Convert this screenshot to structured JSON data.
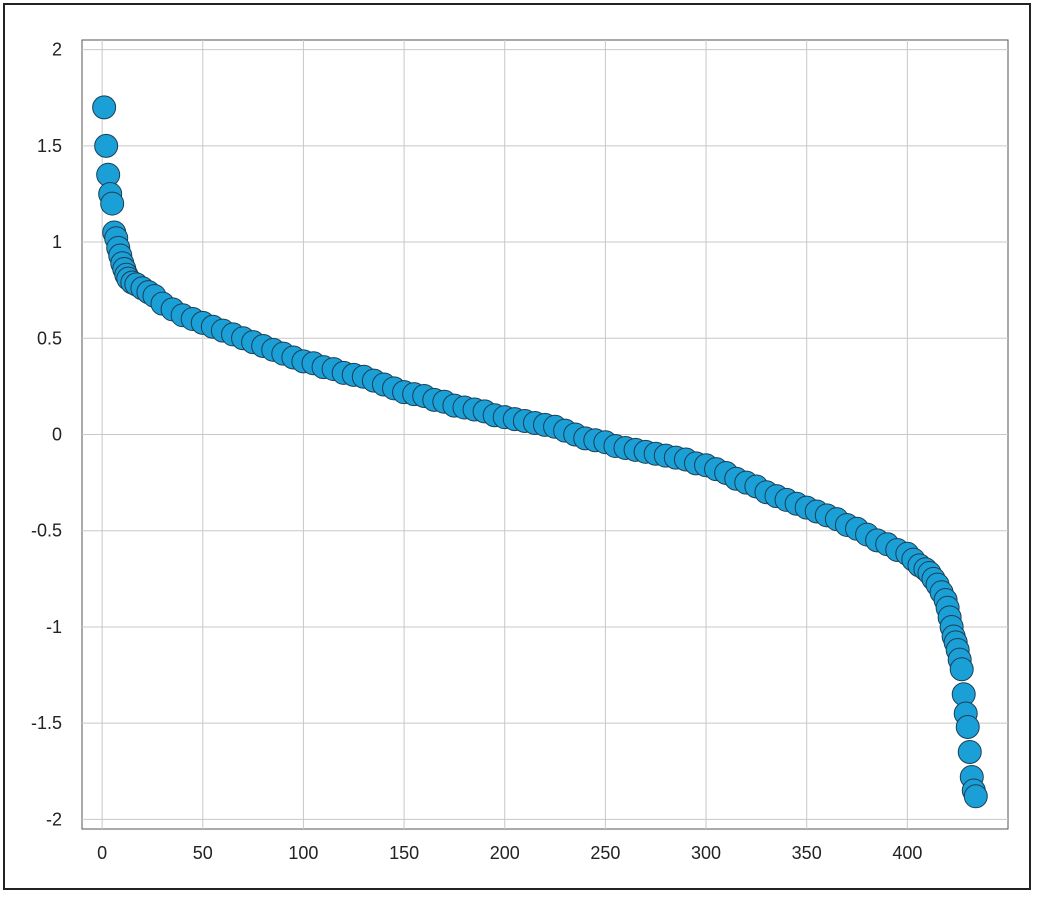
{
  "chart_data": {
    "type": "scatter",
    "title": "",
    "xlabel": "",
    "ylabel": "",
    "xlim": [
      -10,
      450
    ],
    "ylim": [
      -2.05,
      2.05
    ],
    "xticks": [
      0,
      50,
      100,
      150,
      200,
      250,
      300,
      350,
      400
    ],
    "yticks": [
      2,
      1.5,
      1,
      0.5,
      0,
      -0.5,
      -1,
      -1.5,
      -2
    ],
    "xtick_labels": [
      "0",
      "50",
      "100",
      "150",
      "200",
      "250",
      "300",
      "350",
      "400"
    ],
    "ytick_labels": [
      "2",
      "1.5",
      "1",
      "0.5",
      "0",
      "-0.5",
      "-1",
      "-1.5",
      "-2"
    ],
    "grid": true,
    "legend": "none",
    "marker_color": "#1a9fd6",
    "marker_edge_color": "#1b3f55",
    "series": [
      {
        "points": [
          [
            1,
            1.7
          ],
          [
            2,
            1.5
          ],
          [
            3,
            1.35
          ],
          [
            4,
            1.25
          ],
          [
            5,
            1.2
          ],
          [
            6,
            1.05
          ],
          [
            7,
            1.02
          ],
          [
            8,
            0.97
          ],
          [
            9,
            0.93
          ],
          [
            10,
            0.89
          ],
          [
            11,
            0.86
          ],
          [
            12,
            0.83
          ],
          [
            13,
            0.81
          ],
          [
            15,
            0.79
          ],
          [
            17,
            0.78
          ],
          [
            20,
            0.76
          ],
          [
            23,
            0.74
          ],
          [
            26,
            0.72
          ],
          [
            30,
            0.68
          ],
          [
            35,
            0.65
          ],
          [
            40,
            0.62
          ],
          [
            45,
            0.6
          ],
          [
            50,
            0.58
          ],
          [
            55,
            0.56
          ],
          [
            60,
            0.54
          ],
          [
            65,
            0.52
          ],
          [
            70,
            0.5
          ],
          [
            75,
            0.48
          ],
          [
            80,
            0.46
          ],
          [
            85,
            0.44
          ],
          [
            90,
            0.42
          ],
          [
            95,
            0.4
          ],
          [
            100,
            0.38
          ],
          [
            105,
            0.37
          ],
          [
            110,
            0.35
          ],
          [
            115,
            0.34
          ],
          [
            120,
            0.32
          ],
          [
            125,
            0.31
          ],
          [
            130,
            0.3
          ],
          [
            135,
            0.28
          ],
          [
            140,
            0.26
          ],
          [
            145,
            0.24
          ],
          [
            150,
            0.22
          ],
          [
            155,
            0.21
          ],
          [
            160,
            0.2
          ],
          [
            165,
            0.18
          ],
          [
            170,
            0.17
          ],
          [
            175,
            0.15
          ],
          [
            180,
            0.14
          ],
          [
            185,
            0.13
          ],
          [
            190,
            0.12
          ],
          [
            195,
            0.1
          ],
          [
            200,
            0.09
          ],
          [
            205,
            0.08
          ],
          [
            210,
            0.07
          ],
          [
            215,
            0.06
          ],
          [
            220,
            0.05
          ],
          [
            225,
            0.04
          ],
          [
            230,
            0.02
          ],
          [
            235,
            0.0
          ],
          [
            240,
            -0.02
          ],
          [
            245,
            -0.03
          ],
          [
            250,
            -0.04
          ],
          [
            255,
            -0.06
          ],
          [
            260,
            -0.07
          ],
          [
            265,
            -0.08
          ],
          [
            270,
            -0.09
          ],
          [
            275,
            -0.1
          ],
          [
            280,
            -0.11
          ],
          [
            285,
            -0.12
          ],
          [
            290,
            -0.13
          ],
          [
            295,
            -0.15
          ],
          [
            300,
            -0.16
          ],
          [
            305,
            -0.18
          ],
          [
            310,
            -0.2
          ],
          [
            315,
            -0.23
          ],
          [
            320,
            -0.25
          ],
          [
            325,
            -0.27
          ],
          [
            330,
            -0.3
          ],
          [
            335,
            -0.32
          ],
          [
            340,
            -0.34
          ],
          [
            345,
            -0.36
          ],
          [
            350,
            -0.38
          ],
          [
            355,
            -0.4
          ],
          [
            360,
            -0.42
          ],
          [
            365,
            -0.44
          ],
          [
            370,
            -0.47
          ],
          [
            375,
            -0.49
          ],
          [
            380,
            -0.52
          ],
          [
            385,
            -0.55
          ],
          [
            390,
            -0.57
          ],
          [
            395,
            -0.6
          ],
          [
            400,
            -0.62
          ],
          [
            403,
            -0.65
          ],
          [
            406,
            -0.68
          ],
          [
            409,
            -0.7
          ],
          [
            411,
            -0.72
          ],
          [
            413,
            -0.75
          ],
          [
            415,
            -0.78
          ],
          [
            417,
            -0.82
          ],
          [
            419,
            -0.86
          ],
          [
            420,
            -0.9
          ],
          [
            421,
            -0.95
          ],
          [
            422,
            -1.0
          ],
          [
            423,
            -1.05
          ],
          [
            424,
            -1.08
          ],
          [
            425,
            -1.12
          ],
          [
            426,
            -1.17
          ],
          [
            427,
            -1.22
          ],
          [
            428,
            -1.35
          ],
          [
            429,
            -1.45
          ],
          [
            430,
            -1.52
          ],
          [
            431,
            -1.65
          ],
          [
            432,
            -1.78
          ],
          [
            433,
            -1.85
          ],
          [
            434,
            -1.88
          ]
        ]
      }
    ]
  }
}
